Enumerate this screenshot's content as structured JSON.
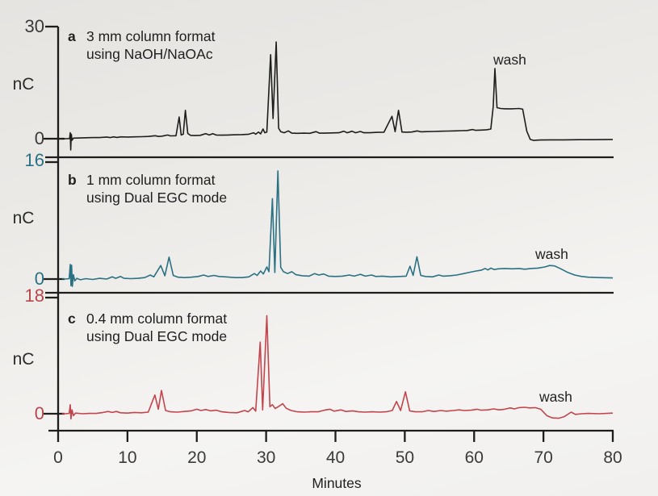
{
  "figure": {
    "xlabel": "Minutes",
    "x_ticks": [
      "0",
      "10",
      "20",
      "30",
      "40",
      "50",
      "60",
      "70",
      "80"
    ],
    "x_tick_values": [
      0,
      10,
      20,
      30,
      40,
      50,
      60,
      70,
      80
    ],
    "panels": [
      {
        "letter": "a",
        "title_line1": "3 mm column format",
        "title_line2": "using NaOH/NaOAc",
        "ylabel": "nC",
        "y_top_label": "30",
        "y_zero_label": "0",
        "wash_label": "wash",
        "trace_color": "#1d1d1b",
        "tick_label_color": "#3a3a3a"
      },
      {
        "letter": "b",
        "title_line1": "1 mm column format",
        "title_line2": "using Dual EGC mode",
        "ylabel": "nC",
        "y_top_label": "16",
        "y_zero_label": "0",
        "wash_label": "wash",
        "trace_color": "#2a7183",
        "tick_label_color": "#2a7183"
      },
      {
        "letter": "c",
        "title_line1": "0.4 mm column format",
        "title_line2": "using Dual EGC mode",
        "ylabel": "nC",
        "y_top_label": "18",
        "y_zero_label": "0",
        "wash_label": "wash",
        "trace_color": "#c2454d",
        "tick_label_color": "#b9454d"
      }
    ]
  },
  "chart_data": [
    {
      "type": "line",
      "panel": "a",
      "title": "3 mm column format using NaOH/NaOAc",
      "xlabel": "Minutes",
      "ylabel": "nC",
      "xlim": [
        0,
        80
      ],
      "ylim": [
        0,
        30
      ],
      "y_ticks": [
        0,
        30
      ],
      "color": "#1d1d1b",
      "annotations": [
        {
          "text": "wash",
          "x": 63
        }
      ],
      "points": [
        [
          0.55,
          -0.1
        ],
        [
          1.0,
          0
        ],
        [
          1.65,
          0.05
        ],
        [
          1.75,
          1.6
        ],
        [
          1.82,
          -3.0
        ],
        [
          1.9,
          1.2
        ],
        [
          2.0,
          -0.4
        ],
        [
          2.2,
          0.15
        ],
        [
          3,
          0.2
        ],
        [
          4,
          0.25
        ],
        [
          5,
          0.3
        ],
        [
          6,
          0.3
        ],
        [
          7,
          0.45
        ],
        [
          7.5,
          0.3
        ],
        [
          8,
          0.5
        ],
        [
          8.5,
          0.35
        ],
        [
          9,
          0.5
        ],
        [
          10,
          0.45
        ],
        [
          11,
          0.5
        ],
        [
          12,
          0.55
        ],
        [
          13,
          0.6
        ],
        [
          14,
          0.8
        ],
        [
          14.5,
          0.6
        ],
        [
          15,
          0.7
        ],
        [
          15.8,
          1.0
        ],
        [
          16.2,
          0.75
        ],
        [
          17.0,
          0.8
        ],
        [
          17.45,
          5.8
        ],
        [
          17.75,
          1.0
        ],
        [
          18.05,
          1.2
        ],
        [
          18.35,
          7.6
        ],
        [
          18.7,
          1.4
        ],
        [
          19.1,
          0.9
        ],
        [
          19.6,
          0.85
        ],
        [
          20.5,
          0.9
        ],
        [
          21.3,
          1.35
        ],
        [
          21.8,
          1.0
        ],
        [
          22.3,
          1.35
        ],
        [
          22.8,
          1.0
        ],
        [
          23.5,
          0.95
        ],
        [
          24.5,
          1.0
        ],
        [
          25.5,
          1.05
        ],
        [
          26.5,
          1.1
        ],
        [
          27.5,
          1.2
        ],
        [
          28.2,
          1.6
        ],
        [
          28.5,
          1.2
        ],
        [
          28.9,
          1.8
        ],
        [
          29.2,
          1.3
        ],
        [
          29.55,
          2.6
        ],
        [
          29.8,
          1.6
        ],
        [
          30.1,
          1.8
        ],
        [
          30.65,
          22.5
        ],
        [
          31.0,
          5.4
        ],
        [
          31.45,
          25.9
        ],
        [
          31.8,
          2.8
        ],
        [
          32.1,
          1.9
        ],
        [
          32.6,
          1.6
        ],
        [
          33.2,
          2.1
        ],
        [
          33.7,
          1.5
        ],
        [
          34.5,
          1.45
        ],
        [
          35.5,
          1.5
        ],
        [
          36.3,
          1.45
        ],
        [
          37.2,
          1.9
        ],
        [
          37.7,
          1.5
        ],
        [
          38.5,
          1.5
        ],
        [
          39.5,
          1.55
        ],
        [
          40.5,
          1.6
        ],
        [
          41.2,
          2.0
        ],
        [
          41.7,
          1.6
        ],
        [
          42.4,
          2.0
        ],
        [
          42.9,
          1.6
        ],
        [
          43.6,
          1.95
        ],
        [
          44.1,
          1.6
        ],
        [
          45,
          1.6
        ],
        [
          46,
          1.7
        ],
        [
          47,
          1.75
        ],
        [
          48.15,
          6.0
        ],
        [
          48.6,
          1.9
        ],
        [
          49.1,
          7.6
        ],
        [
          49.6,
          1.8
        ],
        [
          50.3,
          1.75
        ],
        [
          51,
          1.8
        ],
        [
          51.8,
          2.1
        ],
        [
          52.3,
          1.85
        ],
        [
          53.2,
          1.9
        ],
        [
          54.2,
          1.95
        ],
        [
          55.2,
          2.0
        ],
        [
          56.2,
          2.05
        ],
        [
          57.2,
          2.1
        ],
        [
          58.2,
          2.15
        ],
        [
          59,
          2.2
        ],
        [
          59.8,
          2.45
        ],
        [
          60.2,
          2.25
        ],
        [
          61,
          2.3
        ],
        [
          61.8,
          2.4
        ],
        [
          62.4,
          2.6
        ],
        [
          62.75,
          8.6
        ],
        [
          63.0,
          18.8
        ],
        [
          63.3,
          8.3
        ],
        [
          63.8,
          8.1
        ],
        [
          64.5,
          8.0
        ],
        [
          65.5,
          8.0
        ],
        [
          66.5,
          8.1
        ],
        [
          67.0,
          7.9
        ],
        [
          67.6,
          2.0
        ],
        [
          68.1,
          -0.2
        ],
        [
          68.6,
          -0.45
        ],
        [
          69.5,
          -0.35
        ],
        [
          71,
          -0.3
        ],
        [
          73,
          -0.3
        ],
        [
          75,
          -0.25
        ],
        [
          77,
          -0.25
        ],
        [
          80,
          -0.2
        ]
      ]
    },
    {
      "type": "line",
      "panel": "b",
      "title": "1 mm column format using Dual EGC mode",
      "xlabel": "Minutes",
      "ylabel": "nC",
      "xlim": [
        0,
        80
      ],
      "ylim": [
        0,
        16
      ],
      "y_ticks": [
        0,
        16
      ],
      "color": "#2a7183",
      "annotations": [
        {
          "text": "wash",
          "x": 71
        }
      ],
      "points": [
        [
          0.55,
          0.05
        ],
        [
          1.0,
          0
        ],
        [
          1.6,
          0.05
        ],
        [
          1.75,
          2.0
        ],
        [
          1.85,
          -0.9
        ],
        [
          1.95,
          1.9
        ],
        [
          2.05,
          -1.0
        ],
        [
          2.2,
          0.6
        ],
        [
          2.4,
          -0.25
        ],
        [
          2.7,
          0.1
        ],
        [
          3.2,
          -0.1
        ],
        [
          4,
          0.05
        ],
        [
          5,
          -0.05
        ],
        [
          6,
          0.1
        ],
        [
          7,
          0.0
        ],
        [
          7.8,
          0.3
        ],
        [
          8.3,
          0.1
        ],
        [
          9,
          0.35
        ],
        [
          9.5,
          0.1
        ],
        [
          10.5,
          0.05
        ],
        [
          11.5,
          0.1
        ],
        [
          12.5,
          0.2
        ],
        [
          13.3,
          0.55
        ],
        [
          13.8,
          0.3
        ],
        [
          14.8,
          1.85
        ],
        [
          15.4,
          0.45
        ],
        [
          16.0,
          3.0
        ],
        [
          16.6,
          0.5
        ],
        [
          17.3,
          0.25
        ],
        [
          18.2,
          0.2
        ],
        [
          19.2,
          0.25
        ],
        [
          20.2,
          0.35
        ],
        [
          21.0,
          0.55
        ],
        [
          21.6,
          0.35
        ],
        [
          22.5,
          0.5
        ],
        [
          23.2,
          0.35
        ],
        [
          24.2,
          0.3
        ],
        [
          25.5,
          0.2
        ],
        [
          26.5,
          0.2
        ],
        [
          27.5,
          0.3
        ],
        [
          28.3,
          0.75
        ],
        [
          28.7,
          0.5
        ],
        [
          29.2,
          1.1
        ],
        [
          29.6,
          0.7
        ],
        [
          30.1,
          1.65
        ],
        [
          30.4,
          1.0
        ],
        [
          30.9,
          11.0
        ],
        [
          31.25,
          0.9
        ],
        [
          31.7,
          14.8
        ],
        [
          32.1,
          1.6
        ],
        [
          32.5,
          1.0
        ],
        [
          33.1,
          0.75
        ],
        [
          33.7,
          1.0
        ],
        [
          34.3,
          0.6
        ],
        [
          35.2,
          0.45
        ],
        [
          36.2,
          0.4
        ],
        [
          37.0,
          0.75
        ],
        [
          37.6,
          0.55
        ],
        [
          38.3,
          0.7
        ],
        [
          39.0,
          0.4
        ],
        [
          40.0,
          0.35
        ],
        [
          41.0,
          0.4
        ],
        [
          42.0,
          0.55
        ],
        [
          42.7,
          0.4
        ],
        [
          43.6,
          0.65
        ],
        [
          44.3,
          0.4
        ],
        [
          45.2,
          0.55
        ],
        [
          45.8,
          0.35
        ],
        [
          46.8,
          0.4
        ],
        [
          48.0,
          0.3
        ],
        [
          49.2,
          0.35
        ],
        [
          50.2,
          0.4
        ],
        [
          50.75,
          1.75
        ],
        [
          51.2,
          0.5
        ],
        [
          51.75,
          3.05
        ],
        [
          52.3,
          0.5
        ],
        [
          53.0,
          0.35
        ],
        [
          54.0,
          0.3
        ],
        [
          54.9,
          0.55
        ],
        [
          55.5,
          0.4
        ],
        [
          56.5,
          0.45
        ],
        [
          57.5,
          0.55
        ],
        [
          58.5,
          0.75
        ],
        [
          59.5,
          0.95
        ],
        [
          60.3,
          1.1
        ],
        [
          61.0,
          1.2
        ],
        [
          61.6,
          1.45
        ],
        [
          62.0,
          1.25
        ],
        [
          62.4,
          1.5
        ],
        [
          62.9,
          1.3
        ],
        [
          63.5,
          1.4
        ],
        [
          64.5,
          1.45
        ],
        [
          65.5,
          1.4
        ],
        [
          66.5,
          1.45
        ],
        [
          67.3,
          1.35
        ],
        [
          68.2,
          1.45
        ],
        [
          69.2,
          1.5
        ],
        [
          70.2,
          1.65
        ],
        [
          70.9,
          1.85
        ],
        [
          71.6,
          1.8
        ],
        [
          72.5,
          1.4
        ],
        [
          73.5,
          0.9
        ],
        [
          74.5,
          0.55
        ],
        [
          75.5,
          0.35
        ],
        [
          76.5,
          0.25
        ],
        [
          78,
          0.2
        ],
        [
          80,
          0.15
        ]
      ]
    },
    {
      "type": "line",
      "panel": "c",
      "title": "0.4 mm column format using Dual EGC mode",
      "xlabel": "Minutes",
      "ylabel": "nC",
      "xlim": [
        0,
        80
      ],
      "ylim": [
        0,
        18
      ],
      "y_ticks": [
        0,
        18
      ],
      "color": "#c2454d",
      "annotations": [
        {
          "text": "wash",
          "x": 71
        }
      ],
      "points": [
        [
          0.55,
          0.05
        ],
        [
          1.0,
          0
        ],
        [
          1.6,
          0.05
        ],
        [
          1.75,
          1.4
        ],
        [
          1.85,
          -0.8
        ],
        [
          2.0,
          0.6
        ],
        [
          2.2,
          -0.3
        ],
        [
          2.5,
          0.1
        ],
        [
          3.5,
          0
        ],
        [
          4.5,
          0.05
        ],
        [
          5.5,
          0.05
        ],
        [
          6.5,
          0.2
        ],
        [
          7.2,
          0.35
        ],
        [
          7.8,
          0.2
        ],
        [
          8.4,
          0.35
        ],
        [
          9.0,
          0.15
        ],
        [
          10,
          0.1
        ],
        [
          11,
          0.2
        ],
        [
          12,
          0.15
        ],
        [
          13,
          0.25
        ],
        [
          13.95,
          2.9
        ],
        [
          14.45,
          0.7
        ],
        [
          14.9,
          3.6
        ],
        [
          15.5,
          0.5
        ],
        [
          16.2,
          0.3
        ],
        [
          17.2,
          0.25
        ],
        [
          18.2,
          0.35
        ],
        [
          19.2,
          0.45
        ],
        [
          20.0,
          0.7
        ],
        [
          20.6,
          0.5
        ],
        [
          21.3,
          0.65
        ],
        [
          22.0,
          0.45
        ],
        [
          22.8,
          0.55
        ],
        [
          23.6,
          0.3
        ],
        [
          24.6,
          0.2
        ],
        [
          25.8,
          0.15
        ],
        [
          26.9,
          0.5
        ],
        [
          27.4,
          0.3
        ],
        [
          28.1,
          0.95
        ],
        [
          28.5,
          0.4
        ],
        [
          29.15,
          11.1
        ],
        [
          29.5,
          0.6
        ],
        [
          30.1,
          15.2
        ],
        [
          30.55,
          1.1
        ],
        [
          30.9,
          1.4
        ],
        [
          31.3,
          0.8
        ],
        [
          31.9,
          1.2
        ],
        [
          32.4,
          1.55
        ],
        [
          32.9,
          0.85
        ],
        [
          33.6,
          0.5
        ],
        [
          34.5,
          0.3
        ],
        [
          35.5,
          0.25
        ],
        [
          36.5,
          0.3
        ],
        [
          37.5,
          0.3
        ],
        [
          38.4,
          0.55
        ],
        [
          39.2,
          0.7
        ],
        [
          39.8,
          0.4
        ],
        [
          40.8,
          0.6
        ],
        [
          41.5,
          0.35
        ],
        [
          42.5,
          0.45
        ],
        [
          43.3,
          0.3
        ],
        [
          44.3,
          0.25
        ],
        [
          45.3,
          0.3
        ],
        [
          46.3,
          0.25
        ],
        [
          47.3,
          0.3
        ],
        [
          48.2,
          0.5
        ],
        [
          48.8,
          1.9
        ],
        [
          49.4,
          0.5
        ],
        [
          50.1,
          3.4
        ],
        [
          50.7,
          0.45
        ],
        [
          51.5,
          0.3
        ],
        [
          52.5,
          0.3
        ],
        [
          53.4,
          0.5
        ],
        [
          54.2,
          0.35
        ],
        [
          55.2,
          0.5
        ],
        [
          56.0,
          0.4
        ],
        [
          57.0,
          0.5
        ],
        [
          57.8,
          0.6
        ],
        [
          58.6,
          0.5
        ],
        [
          59.6,
          0.55
        ],
        [
          60.4,
          0.7
        ],
        [
          61.0,
          0.55
        ],
        [
          62.0,
          0.6
        ],
        [
          62.8,
          0.75
        ],
        [
          63.6,
          0.6
        ],
        [
          64.4,
          0.7
        ],
        [
          65.2,
          0.9
        ],
        [
          65.8,
          0.75
        ],
        [
          66.5,
          0.95
        ],
        [
          67.3,
          1.0
        ],
        [
          68.0,
          0.9
        ],
        [
          68.8,
          0.95
        ],
        [
          69.6,
          0.7
        ],
        [
          70.5,
          -0.3
        ],
        [
          71.3,
          -0.65
        ],
        [
          72.2,
          -0.7
        ],
        [
          73.0,
          -0.45
        ],
        [
          74.0,
          0.25
        ],
        [
          74.6,
          -0.1
        ],
        [
          75.5,
          0.0
        ],
        [
          76.5,
          0.05
        ],
        [
          78,
          0.0
        ],
        [
          80,
          0.1
        ]
      ]
    }
  ]
}
